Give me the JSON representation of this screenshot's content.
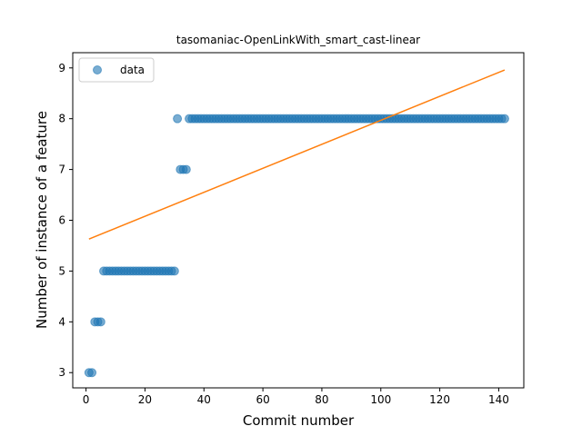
{
  "chart_data": {
    "type": "scatter",
    "title": "tasomaniac-OpenLinkWith_smart_cast-linear",
    "xlabel": "Commit number",
    "ylabel": "Number of instance of a feature",
    "xlim": [
      -4.5,
      148.5
    ],
    "ylim": [
      2.7,
      9.3
    ],
    "xticks": [
      0,
      20,
      40,
      60,
      80,
      100,
      120,
      140
    ],
    "yticks": [
      3,
      4,
      5,
      6,
      7,
      8,
      9
    ],
    "legend": {
      "placement": "top-left",
      "entries": [
        "data"
      ]
    },
    "colors": {
      "points": "#1f77b4",
      "fit": "#ff7f0e"
    },
    "series": [
      {
        "name": "data",
        "kind": "points",
        "x": [
          1,
          2,
          3,
          4,
          5,
          6,
          7,
          8,
          9,
          10,
          11,
          12,
          13,
          14,
          15,
          16,
          17,
          18,
          19,
          20,
          21,
          22,
          23,
          24,
          25,
          26,
          27,
          28,
          29,
          30,
          31,
          32,
          33,
          34,
          35,
          36,
          37,
          38,
          39,
          40,
          41,
          42,
          43,
          44,
          45,
          46,
          47,
          48,
          49,
          50,
          51,
          52,
          53,
          54,
          55,
          56,
          57,
          58,
          59,
          60,
          61,
          62,
          63,
          64,
          65,
          66,
          67,
          68,
          69,
          70,
          71,
          72,
          73,
          74,
          75,
          76,
          77,
          78,
          79,
          80,
          81,
          82,
          83,
          84,
          85,
          86,
          87,
          88,
          89,
          90,
          91,
          92,
          93,
          94,
          95,
          96,
          97,
          98,
          99,
          100,
          101,
          102,
          103,
          104,
          105,
          106,
          107,
          108,
          109,
          110,
          111,
          112,
          113,
          114,
          115,
          116,
          117,
          118,
          119,
          120,
          121,
          122,
          123,
          124,
          125,
          126,
          127,
          128,
          129,
          130,
          131,
          132,
          133,
          134,
          135,
          136,
          137,
          138,
          139,
          140,
          141,
          142
        ],
        "y": [
          3,
          3,
          4,
          4,
          4,
          5,
          5,
          5,
          5,
          5,
          5,
          5,
          5,
          5,
          5,
          5,
          5,
          5,
          5,
          5,
          5,
          5,
          5,
          5,
          5,
          5,
          5,
          5,
          5,
          5,
          8,
          7,
          7,
          7,
          8,
          8,
          8,
          8,
          8,
          8,
          8,
          8,
          8,
          8,
          8,
          8,
          8,
          8,
          8,
          8,
          8,
          8,
          8,
          8,
          8,
          8,
          8,
          8,
          8,
          8,
          8,
          8,
          8,
          8,
          8,
          8,
          8,
          8,
          8,
          8,
          8,
          8,
          8,
          8,
          8,
          8,
          8,
          8,
          8,
          8,
          8,
          8,
          8,
          8,
          8,
          8,
          8,
          8,
          8,
          8,
          8,
          8,
          8,
          8,
          8,
          8,
          8,
          8,
          8,
          8,
          8,
          8,
          8,
          8,
          8,
          8,
          8,
          8,
          8,
          8,
          8,
          8,
          8,
          8,
          8,
          8,
          8,
          8,
          8,
          8,
          8,
          8,
          8,
          8,
          8,
          8,
          8,
          8,
          8,
          8,
          8,
          8,
          8,
          8,
          8,
          8,
          8,
          8,
          8,
          8,
          8,
          8
        ]
      },
      {
        "kind": "line",
        "x": [
          1,
          142
        ],
        "y": [
          5.63,
          8.96
        ]
      }
    ]
  }
}
